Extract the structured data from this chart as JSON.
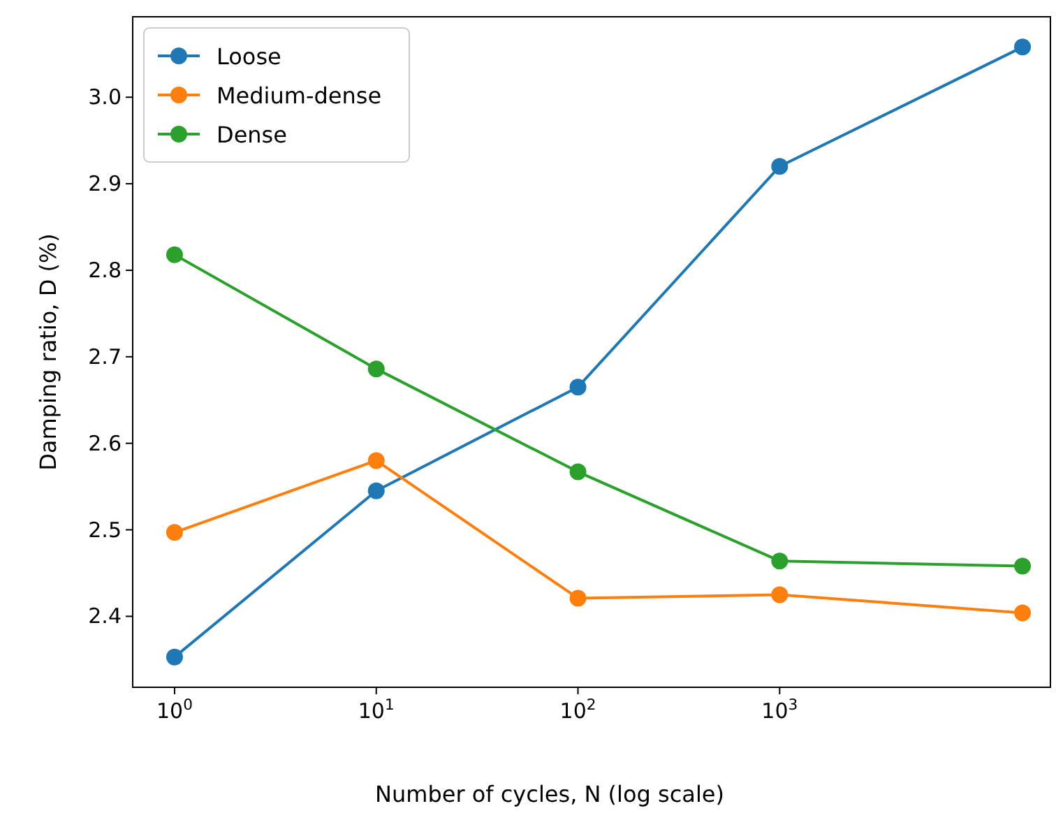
{
  "chart_data": {
    "type": "line",
    "xlabel": "Number of cycles, N (log scale)",
    "ylabel": "Damping ratio, D (%)",
    "log": "x",
    "x": [
      1,
      10,
      100,
      1000,
      16000
    ],
    "series": [
      {
        "name": "Loose",
        "color": "#1f77b4",
        "values": [
          2.353,
          2.545,
          2.665,
          2.92,
          3.058
        ]
      },
      {
        "name": "Medium-dense",
        "color": "#ff7f0e",
        "values": [
          2.497,
          2.58,
          2.421,
          2.425,
          2.404
        ]
      },
      {
        "name": "Dense",
        "color": "#2ca02c",
        "values": [
          2.818,
          2.686,
          2.567,
          2.464,
          2.458
        ]
      }
    ],
    "xlim": [
      0.62,
      22000
    ],
    "ylim": [
      2.318,
      3.093
    ],
    "xticks": [
      {
        "value": 1,
        "label": "10$^{0}$"
      },
      {
        "value": 10,
        "label": "10$^{1}$"
      },
      {
        "value": 100,
        "label": "10$^{2}$"
      },
      {
        "value": 1000,
        "label": "10$^{3}$"
      }
    ],
    "yticks": [
      {
        "value": 2.4,
        "label": "2.4"
      },
      {
        "value": 2.5,
        "label": "2.5"
      },
      {
        "value": 2.6,
        "label": "2.6"
      },
      {
        "value": 2.7,
        "label": "2.7"
      },
      {
        "value": 2.8,
        "label": "2.8"
      },
      {
        "value": 2.9,
        "label": "2.9"
      },
      {
        "value": 3.0,
        "label": "3.0"
      }
    ],
    "legend": "top left",
    "marker": "circle",
    "line_style": "solid",
    "grid": false
  }
}
